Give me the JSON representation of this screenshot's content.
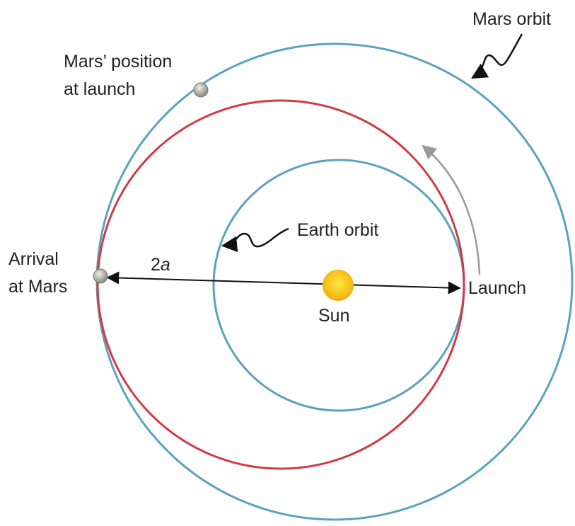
{
  "labels": {
    "mars_orbit": "Mars orbit",
    "mars_position": [
      "Mars’ position",
      "at launch"
    ],
    "earth_orbit": "Earth orbit",
    "arrival": [
      "Arrival",
      "at Mars"
    ],
    "distance": {
      "number": "2",
      "variable": "a"
    },
    "launch": "Launch",
    "sun": "Sun"
  }
}
